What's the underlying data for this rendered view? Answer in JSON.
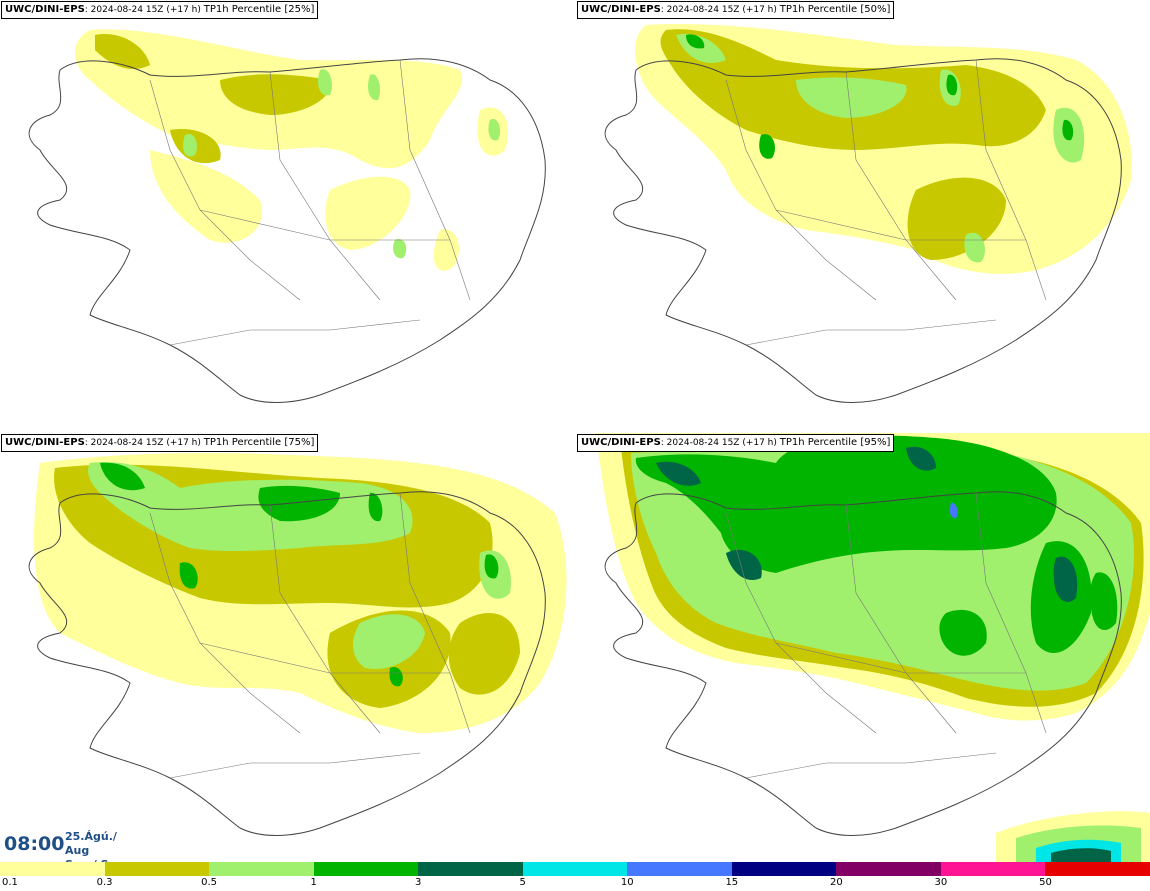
{
  "panels": [
    {
      "model": "UWC/DINI-EPS",
      "run": "2024-08-24 15Z (+17 h)",
      "param": "TP1h Percentile [25%]"
    },
    {
      "model": "UWC/DINI-EPS",
      "run": "2024-08-24 15Z (+17 h)",
      "param": "TP1h Percentile [50%]"
    },
    {
      "model": "UWC/DINI-EPS",
      "run": "2024-08-24 15Z (+17 h)",
      "param": "TP1h Percentile [75%]"
    },
    {
      "model": "UWC/DINI-EPS",
      "run": "2024-08-24 15Z (+17 h)",
      "param": "TP1h Percentile [95%]"
    }
  ],
  "valid_time": {
    "time": "08:00",
    "date_line": "25.Ágú./ Aug",
    "day_line": "Sun./ Sun"
  },
  "legend": {
    "ticks": [
      "0.1",
      "0.3",
      "0.5",
      "1",
      "3",
      "5",
      "10",
      "15",
      "20",
      "30",
      "50"
    ],
    "colors": [
      "#ffff9c",
      "#c8c800",
      "#a0f06e",
      "#00b400",
      "#006446",
      "#00e6e6",
      "#4678ff",
      "#000082",
      "#820064",
      "#ff1493",
      "#e60000"
    ]
  }
}
